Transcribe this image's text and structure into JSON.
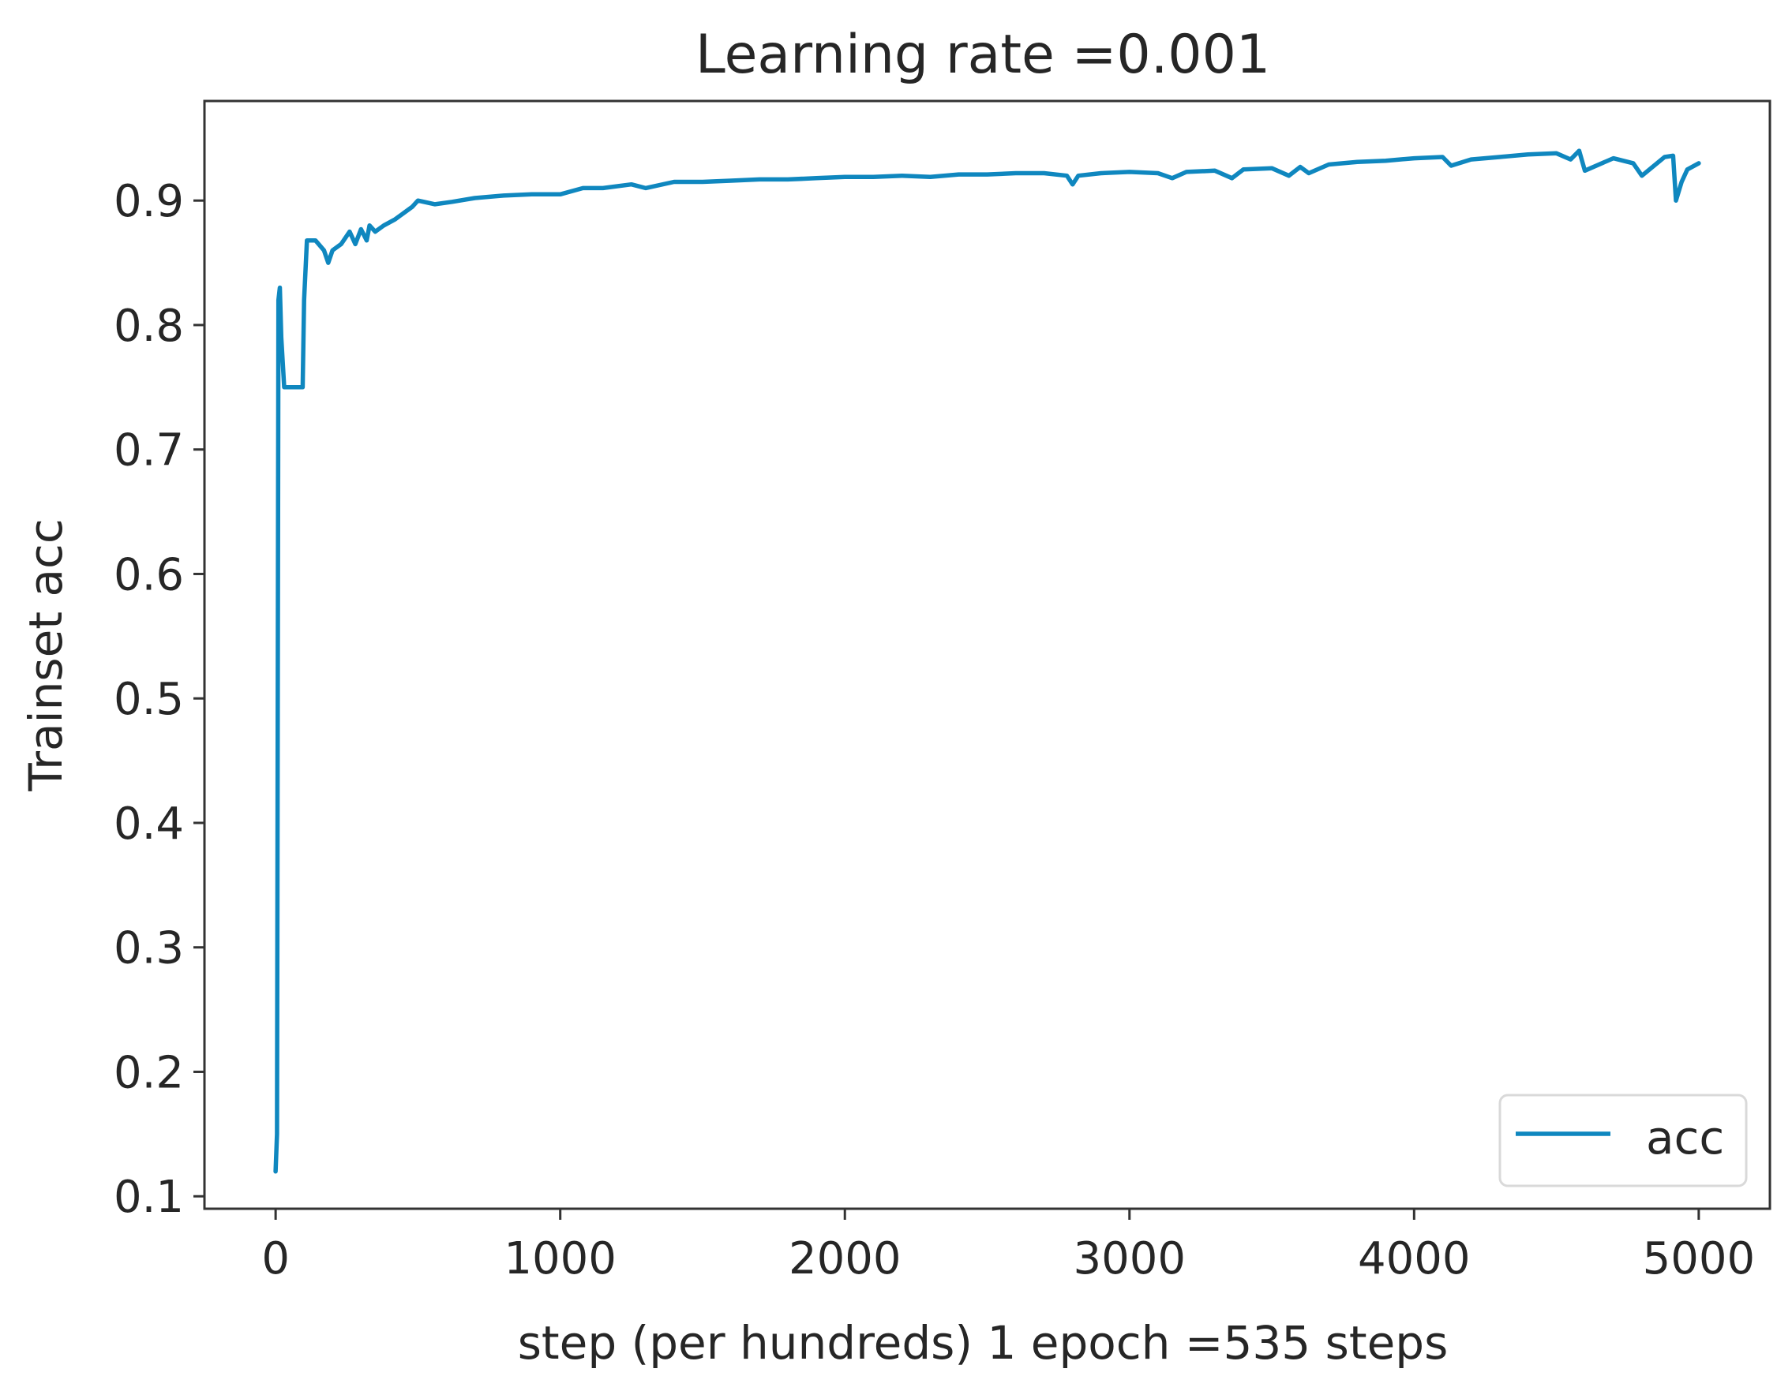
{
  "chart_data": {
    "type": "line",
    "title": "Learning rate =0.001",
    "xlabel": "step (per hundreds) 1 epoch =535 steps",
    "ylabel": "Trainset acc",
    "xlim": [
      -250,
      5250
    ],
    "ylim": [
      0.09,
      0.98
    ],
    "x_ticks": [
      0,
      1000,
      2000,
      3000,
      4000,
      5000
    ],
    "x_tick_labels": [
      "0",
      "1000",
      "2000",
      "3000",
      "4000",
      "5000"
    ],
    "y_ticks": [
      0.1,
      0.2,
      0.3,
      0.4,
      0.5,
      0.6,
      0.7,
      0.8,
      0.9
    ],
    "y_tick_labels": [
      "0.1",
      "0.2",
      "0.3",
      "0.4",
      "0.5",
      "0.6",
      "0.7",
      "0.8",
      "0.9"
    ],
    "grid": false,
    "legend_position": "lower right",
    "series": [
      {
        "name": "acc",
        "color": "#0f87bf",
        "x": [
          0,
          5,
          10,
          15,
          20,
          30,
          40,
          60,
          80,
          95,
          100,
          110,
          140,
          170,
          185,
          200,
          230,
          260,
          280,
          300,
          320,
          330,
          350,
          380,
          420,
          450,
          480,
          500,
          560,
          620,
          700,
          800,
          900,
          1000,
          1080,
          1150,
          1250,
          1300,
          1400,
          1500,
          1600,
          1700,
          1800,
          1900,
          2000,
          2100,
          2200,
          2300,
          2400,
          2500,
          2600,
          2700,
          2780,
          2800,
          2820,
          2900,
          3000,
          3100,
          3150,
          3200,
          3300,
          3360,
          3400,
          3500,
          3560,
          3600,
          3630,
          3700,
          3800,
          3900,
          4000,
          4100,
          4130,
          4200,
          4300,
          4400,
          4500,
          4550,
          4580,
          4600,
          4700,
          4770,
          4800,
          4880,
          4910,
          4920,
          4940,
          4960,
          5000
        ],
        "y": [
          0.12,
          0.15,
          0.82,
          0.83,
          0.79,
          0.75,
          0.75,
          0.75,
          0.75,
          0.75,
          0.82,
          0.868,
          0.868,
          0.86,
          0.85,
          0.86,
          0.865,
          0.875,
          0.865,
          0.877,
          0.868,
          0.88,
          0.875,
          0.88,
          0.885,
          0.89,
          0.895,
          0.9,
          0.897,
          0.899,
          0.902,
          0.904,
          0.905,
          0.905,
          0.91,
          0.91,
          0.913,
          0.91,
          0.915,
          0.915,
          0.916,
          0.917,
          0.917,
          0.918,
          0.919,
          0.919,
          0.92,
          0.919,
          0.921,
          0.921,
          0.922,
          0.922,
          0.92,
          0.913,
          0.92,
          0.922,
          0.923,
          0.922,
          0.918,
          0.923,
          0.924,
          0.918,
          0.925,
          0.926,
          0.92,
          0.927,
          0.922,
          0.929,
          0.931,
          0.932,
          0.934,
          0.935,
          0.928,
          0.933,
          0.935,
          0.937,
          0.938,
          0.933,
          0.94,
          0.924,
          0.934,
          0.93,
          0.92,
          0.935,
          0.936,
          0.9,
          0.915,
          0.925,
          0.93
        ]
      }
    ]
  }
}
